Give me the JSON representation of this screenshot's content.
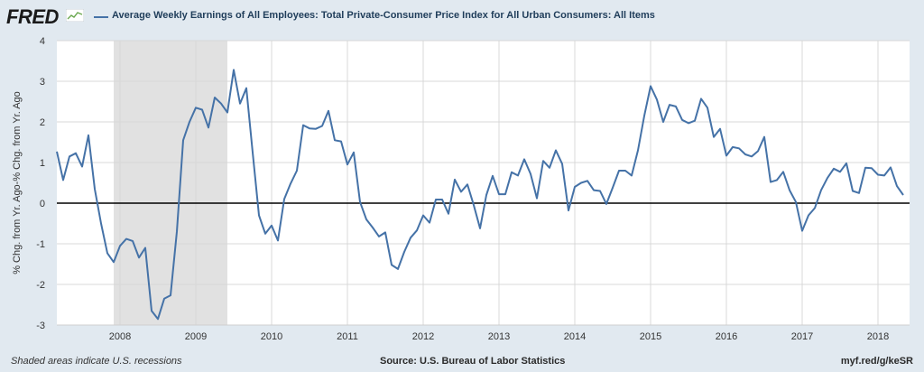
{
  "header": {
    "logo_text": "FRED",
    "title": "Average Weekly Earnings of All Employees: Total Private-Consumer Price Index for All Urban Consumers: All Items"
  },
  "footer": {
    "recession_note": "Shaded areas indicate U.S. recessions",
    "source": "Source: U.S. Bureau of Labor Statistics",
    "url": "myf.red/g/keSR"
  },
  "colors": {
    "line": "#4572a7",
    "recession": "#e1e1e1",
    "background": "#e1e9f0",
    "plot_background": "#ffffff",
    "gridline": "#d8d8d8"
  },
  "chart_data": {
    "type": "line",
    "title": "Average Weekly Earnings of All Employees: Total Private-Consumer Price Index for All Urban Consumers: All Items",
    "ylabel": "% Chg. from Yr. Ago-% Chg. from Yr. Ago",
    "xlabel": "",
    "ylim": [
      -3,
      4
    ],
    "yticks": [
      -3,
      -2,
      -1,
      0,
      1,
      2,
      3,
      4
    ],
    "xlim": [
      "2007-03",
      "2018-06"
    ],
    "xticks": [
      "2008",
      "2009",
      "2010",
      "2011",
      "2012",
      "2013",
      "2014",
      "2015",
      "2016",
      "2017",
      "2018"
    ],
    "grid": true,
    "zero_line": true,
    "recession_shading": [
      {
        "start": "2007-12",
        "end": "2009-06"
      }
    ],
    "series": [
      {
        "start": "2007-03",
        "frequency": "monthly",
        "values": [
          1.27,
          0.57,
          1.15,
          1.23,
          0.9,
          1.67,
          0.35,
          -0.5,
          -1.23,
          -1.45,
          -1.05,
          -0.88,
          -0.93,
          -1.34,
          -1.1,
          -2.65,
          -2.85,
          -2.35,
          -2.27,
          -0.7,
          1.55,
          2.0,
          2.35,
          2.3,
          1.86,
          2.6,
          2.45,
          2.23,
          3.28,
          2.45,
          2.83,
          1.25,
          -0.3,
          -0.75,
          -0.55,
          -0.92,
          0.1,
          0.48,
          0.8,
          1.92,
          1.84,
          1.83,
          1.9,
          2.27,
          1.55,
          1.52,
          0.95,
          1.25,
          0.03,
          -0.4,
          -0.6,
          -0.82,
          -0.72,
          -1.52,
          -1.62,
          -1.2,
          -0.85,
          -0.67,
          -0.3,
          -0.48,
          0.09,
          0.09,
          -0.26,
          0.58,
          0.28,
          0.46,
          -0.05,
          -0.62,
          0.2,
          0.67,
          0.22,
          0.22,
          0.76,
          0.68,
          1.08,
          0.72,
          0.12,
          1.04,
          0.87,
          1.3,
          0.97,
          -0.18,
          0.4,
          0.5,
          0.55,
          0.32,
          0.3,
          -0.02,
          0.38,
          0.8,
          0.8,
          0.68,
          1.3,
          2.15,
          2.88,
          2.55,
          2.0,
          2.42,
          2.38,
          2.05,
          1.97,
          2.03,
          2.57,
          2.35,
          1.63,
          1.83,
          1.17,
          1.38,
          1.35,
          1.2,
          1.15,
          1.28,
          1.63,
          0.52,
          0.57,
          0.77,
          0.32,
          0.03,
          -0.68,
          -0.3,
          -0.12,
          0.32,
          0.62,
          0.85,
          0.77,
          0.98,
          0.3,
          0.25,
          0.87,
          0.86,
          0.7,
          0.68,
          0.88,
          0.42,
          0.2
        ]
      }
    ]
  }
}
